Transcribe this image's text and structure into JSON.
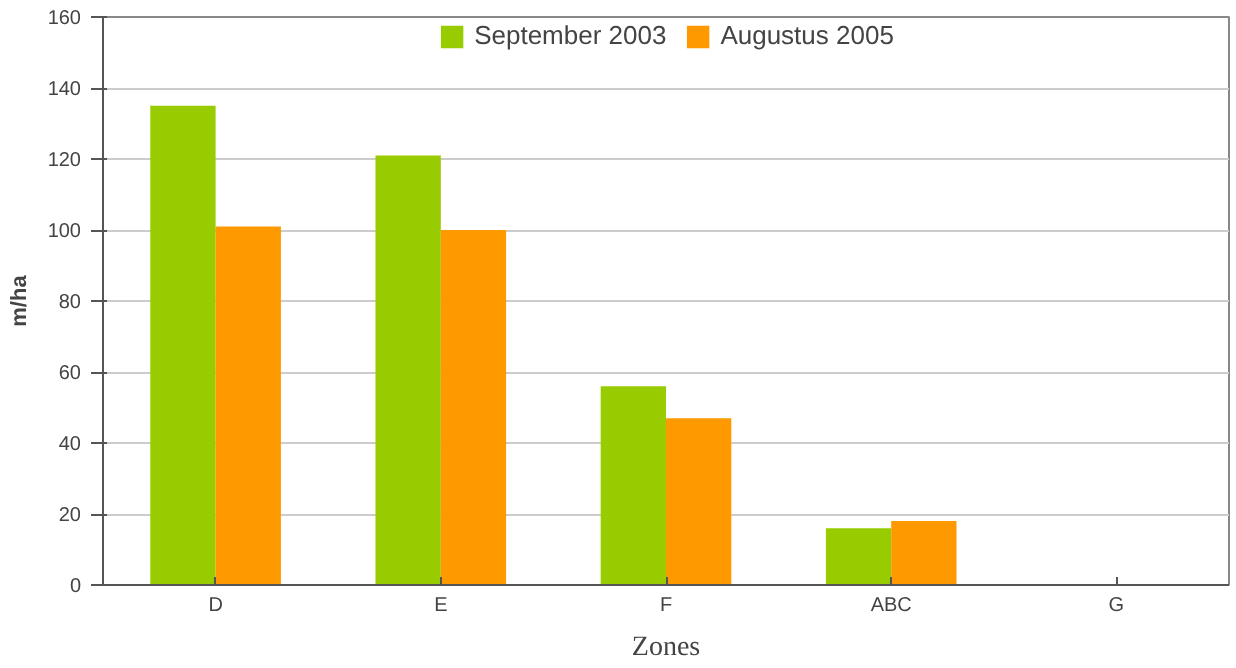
{
  "chart_data": {
    "type": "bar",
    "xlabel": "Zones",
    "ylabel": "m/ha",
    "categories": [
      "D",
      "E",
      "F",
      "ABC",
      "G"
    ],
    "series": [
      {
        "name": "September 2003",
        "color": "#99cc00",
        "values": [
          135,
          121,
          56,
          16,
          0
        ]
      },
      {
        "name": "Augustus 2005",
        "color": "#ff9900",
        "values": [
          101,
          100,
          47,
          18,
          0
        ]
      }
    ],
    "ylim": [
      0,
      160
    ],
    "yticks": [
      0,
      20,
      40,
      60,
      80,
      100,
      120,
      140,
      160
    ],
    "grid": "y",
    "legend": "top"
  }
}
